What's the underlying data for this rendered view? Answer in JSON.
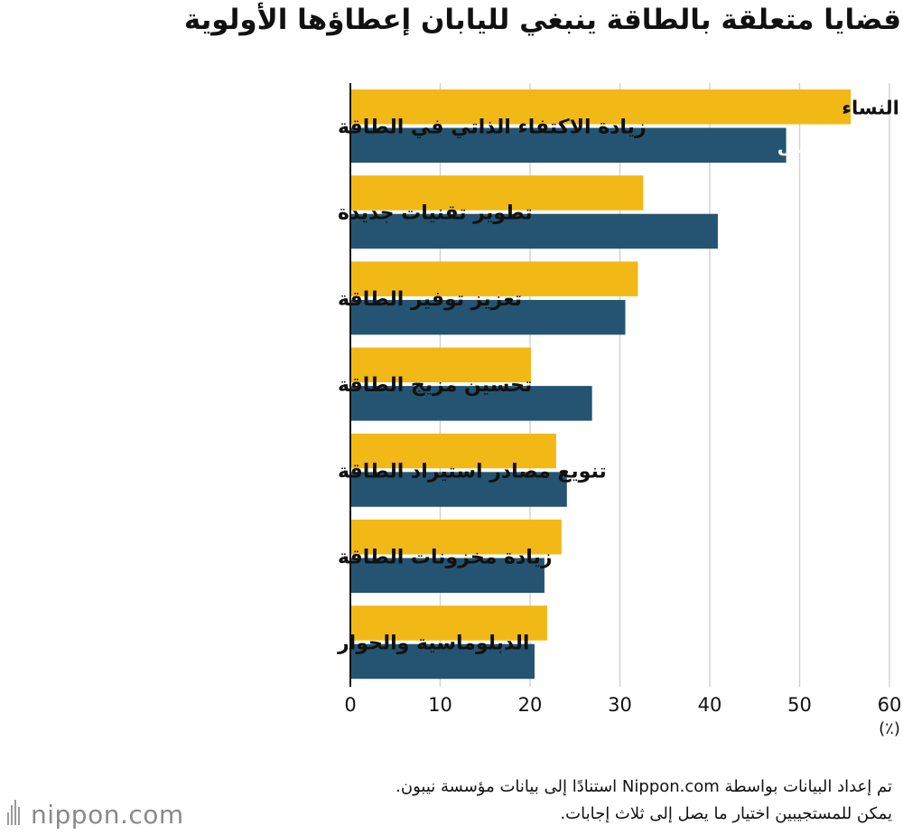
{
  "chart_data": {
    "type": "bar",
    "orientation": "horizontal",
    "title": "قضايا متعلقة بالطاقة ينبغي لليابان إعطاؤها الأولوية",
    "categories": [
      "زيادة الاكتفاء الذاتي في الطاقة",
      "تطوير تقنيات جديدة",
      "تعزيز توفير الطاقة",
      "تحسين مزيج الطاقة",
      "تنويع مصادر استيراد الطاقة",
      "زيادة مخزونات الطاقة",
      "الدبلوماسية والحوار"
    ],
    "series": [
      {
        "name": "النساء",
        "color": "#f2b816",
        "values": [
          55.7,
          32.6,
          32.0,
          20.1,
          22.9,
          23.5,
          21.9
        ]
      },
      {
        "name": "الرجال",
        "color": "#245471",
        "values": [
          48.5,
          40.9,
          30.6,
          26.9,
          24.1,
          21.6,
          20.5
        ]
      }
    ],
    "xlim": [
      0,
      60
    ],
    "xticks": [
      0,
      10,
      20,
      30,
      40,
      50,
      60
    ],
    "unit": "(٪)",
    "grid": true,
    "legend": "inside-first-bars"
  },
  "footer": {
    "source": "تم إعداد البيانات بواسطة Nippon.com استنادًا إلى بيانات مؤسسة نيبون.",
    "note": "يمكن للمستجيبين اختيار ما يصل إلى ثلاث إجابات."
  },
  "logo": {
    "text": "nippon.com",
    "icon": "nippon-logo-bars-icon"
  }
}
